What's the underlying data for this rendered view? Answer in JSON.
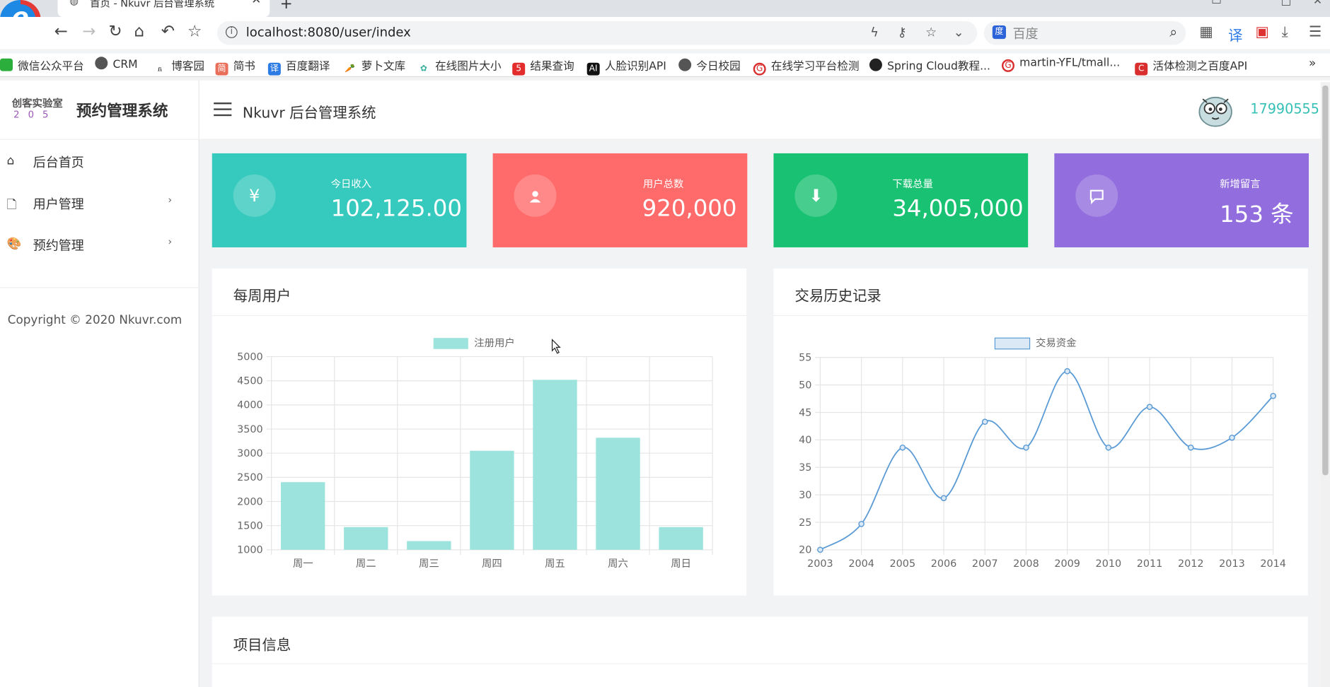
{
  "browser": {
    "tab_title": "首页 - Nkuvr 后台管理系统",
    "url": "localhost:8080/user/index",
    "search_placeholder": "百度",
    "bookmarks": [
      {
        "label": "微信公众平台",
        "icon": "wechat-icon",
        "color": "#2bae3c"
      },
      {
        "label": "CRM",
        "icon": "globe-icon",
        "color": "#555555"
      },
      {
        "label": "博客园",
        "icon": "cnblogs-icon",
        "color": "#333333"
      },
      {
        "label": "简书",
        "icon": "jianshu-icon",
        "color": "#ea6f5a"
      },
      {
        "label": "百度翻译",
        "icon": "translate-icon",
        "color": "#2d7be5"
      },
      {
        "label": "萝卜文库",
        "icon": "carrot-icon",
        "color": "#e67e22"
      },
      {
        "label": "在线图片大小",
        "icon": "flower-icon",
        "color": "#3bb09e"
      },
      {
        "label": "结果查询",
        "icon": "five-icon",
        "color": "#e32c2c"
      },
      {
        "label": "人脸识别API",
        "icon": "ai-icon",
        "color": "#111111"
      },
      {
        "label": "今日校园",
        "icon": "globe-icon",
        "color": "#555555"
      },
      {
        "label": "在线学习平台检测",
        "icon": "g-icon",
        "color": "#d92e2e"
      },
      {
        "label": "Spring Cloud教程...",
        "icon": "github-icon",
        "color": "#222222"
      },
      {
        "label": "martin-YFL/tmall...",
        "icon": "g-icon",
        "color": "#d92e2e"
      },
      {
        "label": "活体检测之百度API",
        "icon": "c-icon",
        "color": "#d92e2e"
      }
    ],
    "more": "»"
  },
  "sidebar": {
    "brand_lab": "创客实验室",
    "brand_num": "205",
    "brand_title": "预约管理系统",
    "items": [
      {
        "label": "后台首页",
        "icon": "home-icon"
      },
      {
        "label": "用户管理",
        "icon": "file-icon",
        "arrow": "›"
      },
      {
        "label": "预约管理",
        "icon": "palette-icon",
        "arrow": "›"
      }
    ],
    "copyright": "Copyright © 2020 Nkuvr.com"
  },
  "header": {
    "title": "Nkuvr 后台管理系统",
    "user_id": "17990555"
  },
  "stats": [
    {
      "label": "今日收入",
      "value": "102,125.00",
      "icon": "yen-icon",
      "color": "#36c9bd"
    },
    {
      "label": "用户总数",
      "value": "920,000",
      "icon": "user-icon",
      "color": "#ff6b6b"
    },
    {
      "label": "下载总量",
      "value": "34,005,000",
      "icon": "download-icon",
      "color": "#19c272"
    },
    {
      "label": "新增留言",
      "value": "153 条",
      "icon": "message-icon",
      "color": "#926dde"
    }
  ],
  "panels": {
    "weekly": "每周用户",
    "history": "交易历史记录",
    "project": "项目信息"
  },
  "chart_data": [
    {
      "type": "bar",
      "legend": "注册用户",
      "categories": [
        "周一",
        "周二",
        "周三",
        "周四",
        "周五",
        "周六",
        "周日"
      ],
      "series": [
        {
          "name": "注册用户",
          "values": [
            2400,
            1470,
            1180,
            3050,
            4520,
            3320,
            1470
          ]
        }
      ],
      "ylim": [
        1000,
        5000
      ],
      "yticks": [
        "5000",
        "4500",
        "4000",
        "3500",
        "3000",
        "2500",
        "2000",
        "1500",
        "1000"
      ],
      "grid": true,
      "color": "#9be3dc"
    },
    {
      "type": "line",
      "legend": "交易资金",
      "categories": [
        "2003",
        "2004",
        "2005",
        "2006",
        "2007",
        "2008",
        "2009",
        "2010",
        "2011",
        "2012",
        "2013",
        "2014"
      ],
      "series": [
        {
          "name": "交易资金",
          "values": [
            20,
            24.7,
            38.6,
            29.4,
            43.3,
            38.6,
            52.5,
            38.6,
            46.0,
            38.6,
            40.4,
            48.0
          ]
        }
      ],
      "ylim": [
        20,
        55
      ],
      "yticks": [
        "55",
        "50",
        "45",
        "40",
        "35",
        "30",
        "25",
        "20"
      ],
      "grid": true,
      "color": "#5b9bd5"
    }
  ]
}
